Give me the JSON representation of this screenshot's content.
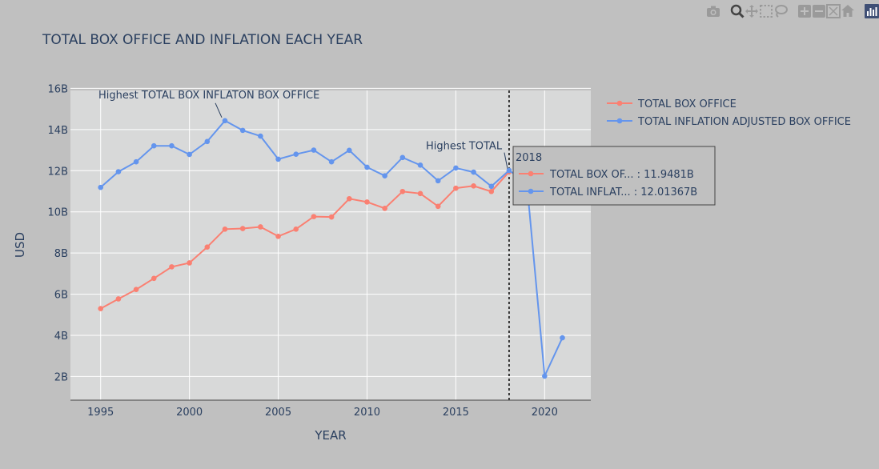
{
  "modebar": {
    "buttons": [
      "camera-icon",
      "zoom-icon",
      "pan-icon",
      "box-select-icon",
      "lasso-icon",
      "zoom-in-icon",
      "zoom-out-icon",
      "autoscale-icon",
      "reset-axes-icon",
      "plotly-logo-icon"
    ]
  },
  "colors": {
    "background": "#c0c0c0",
    "plot_background": "#d8d9d9",
    "box_office": "#fa8072",
    "inflation": "#6495ed",
    "text": "#2a3f5f"
  },
  "chart_data": {
    "type": "line",
    "title": "TOTAL BOX OFFICE AND INFLATION EACH YEAR",
    "xlabel": "YEAR",
    "ylabel": "USD",
    "xlim": [
      1993.3,
      2022.6
    ],
    "ylim": [
      0.85,
      15.9
    ],
    "x_ticks": [
      1995,
      2000,
      2005,
      2010,
      2015,
      2020
    ],
    "x_tick_labels": [
      "1995",
      "2000",
      "2005",
      "2010",
      "2015",
      "2020"
    ],
    "y_ticks": [
      2,
      4,
      6,
      8,
      10,
      12,
      14,
      16
    ],
    "y_tick_labels": [
      "2B",
      "4B",
      "6B",
      "8B",
      "10B",
      "12B",
      "14B",
      "16B"
    ],
    "grid": true,
    "legend_position": "top-right, outside plot",
    "series": [
      {
        "name": "TOTAL BOX OFFICE",
        "color": "#fa8072",
        "x": [
          1995,
          1996,
          1997,
          1998,
          1999,
          2000,
          2001,
          2002,
          2003,
          2004,
          2005,
          2006,
          2007,
          2008,
          2009,
          2010,
          2011,
          2012,
          2013,
          2014,
          2015,
          2016,
          2017,
          2018
        ],
        "y": [
          5.3,
          5.77,
          6.23,
          6.77,
          7.33,
          7.52,
          8.29,
          9.16,
          9.19,
          9.27,
          8.81,
          9.16,
          9.77,
          9.75,
          10.64,
          10.48,
          10.17,
          10.99,
          10.89,
          10.27,
          11.15,
          11.26,
          10.99,
          11.9481
        ]
      },
      {
        "name": "TOTAL INFLATION ADJUSTED BOX OFFICE",
        "color": "#6495ed",
        "x": [
          1995,
          1996,
          1997,
          1998,
          1999,
          2000,
          2001,
          2002,
          2003,
          2004,
          2005,
          2006,
          2007,
          2008,
          2009,
          2010,
          2011,
          2012,
          2013,
          2014,
          2015,
          2016,
          2017,
          2018,
          2019,
          2020,
          2021
        ],
        "y": [
          11.19,
          11.95,
          12.43,
          13.21,
          13.21,
          12.79,
          13.42,
          14.43,
          13.96,
          13.68,
          12.56,
          12.8,
          13.0,
          12.43,
          12.99,
          12.17,
          11.75,
          12.64,
          12.27,
          11.51,
          12.13,
          11.93,
          11.24,
          12.01367,
          11.4,
          2.02,
          3.88
        ]
      }
    ],
    "annotations": [
      {
        "text": "Highest TOTAL BOX INFLATON BOX OFFICE",
        "x": 2002,
        "y": 14.43,
        "series_index": 1
      },
      {
        "text": "Highest TOTAL",
        "x": 2018,
        "y": 11.9481,
        "series_index": 0
      }
    ],
    "spike_line_x": 2018,
    "hover": {
      "header": "2018",
      "rows": [
        {
          "label": "TOTAL BOX OF... : 11.9481B",
          "color": "#fa8072"
        },
        {
          "label": "TOTAL INFLAT... : 12.01367B",
          "color": "#6495ed"
        }
      ]
    }
  }
}
